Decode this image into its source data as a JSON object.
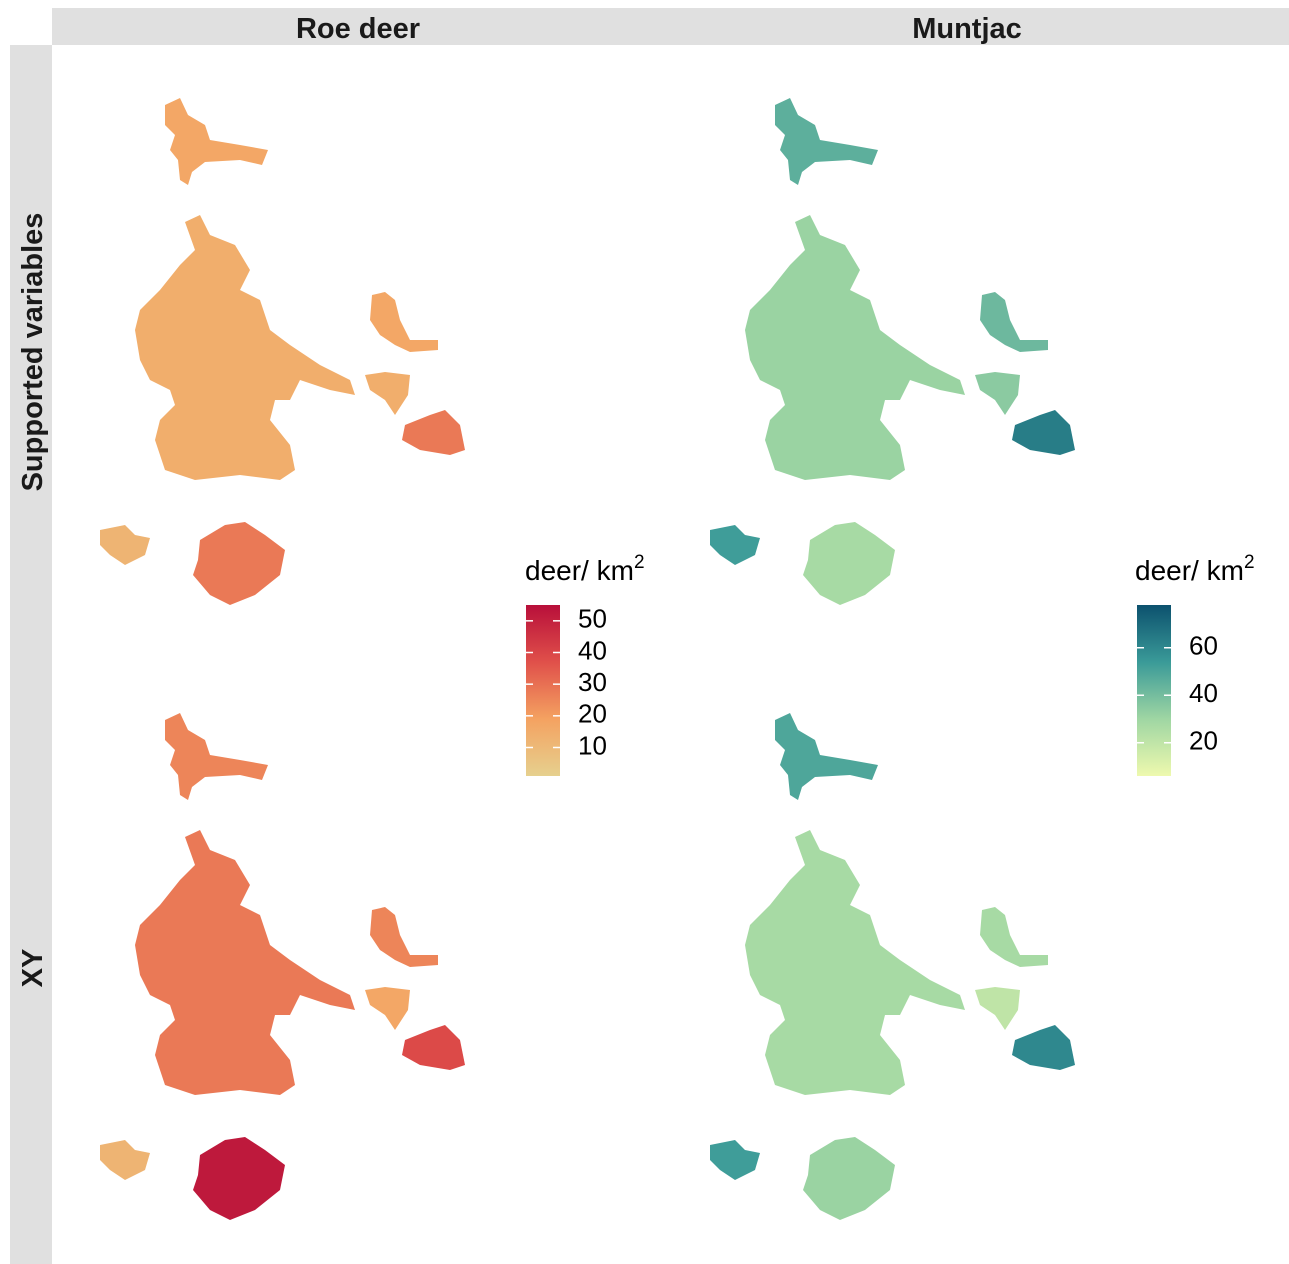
{
  "columns": [
    "Roe deer",
    "Muntjac"
  ],
  "rows": [
    "Supported variables",
    "XY"
  ],
  "legends": [
    {
      "title": "deer/ km",
      "title_superscript": "2",
      "colors": [
        "#e6d08e",
        "#f4a261",
        "#e0504a",
        "#b80f3a"
      ],
      "limits": [
        1,
        55
      ],
      "ticks": [
        10,
        20,
        30,
        40,
        50
      ]
    },
    {
      "title": "deer/ km",
      "title_superscript": "2",
      "colors": [
        "#eef9ae",
        "#9fd6a3",
        "#3a9a98",
        "#0c516e"
      ],
      "limits": [
        6,
        78
      ],
      "ticks": [
        20,
        40,
        60
      ]
    }
  ]
}
